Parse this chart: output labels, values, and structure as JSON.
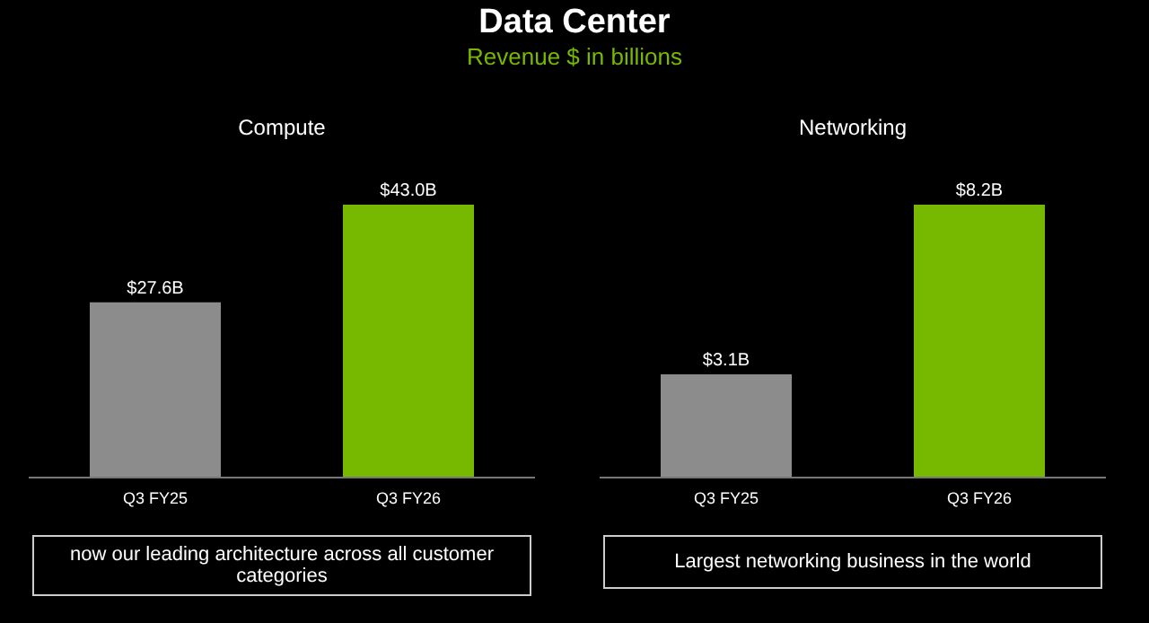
{
  "chart_data": [
    {
      "type": "other",
      "title": "Data Center",
      "subtitle": "Revenue $ in billions"
    },
    {
      "type": "bar",
      "title": "Compute",
      "categories": [
        "Q3 FY25",
        "Q3 FY26"
      ],
      "values": [
        27.6,
        43.0
      ],
      "colors": [
        "#8c8c8c",
        "#76b900"
      ],
      "value_labels": [
        "$27.6B",
        "$43.0B"
      ],
      "annotations": [
        "now our leading architecture across all customer categories"
      ]
    },
    {
      "type": "bar",
      "title": "Networking",
      "categories": [
        "Q3 FY25",
        "Q3 FY26"
      ],
      "values": [
        3.1,
        8.2
      ],
      "colors": [
        "#8c8c8c",
        "#76b900"
      ],
      "value_labels": [
        "$3.1B",
        "$8.2B"
      ],
      "annotations": [
        "Largest networking business in the world"
      ]
    }
  ]
}
